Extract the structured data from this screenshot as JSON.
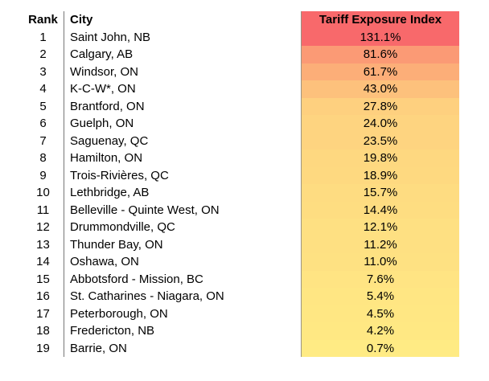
{
  "table": {
    "headers": {
      "rank": "Rank",
      "city": "City",
      "value": "Tariff Exposure Index"
    },
    "header_value_bg": "#F8696B",
    "divider_color": "#777777",
    "text_color": "#000000"
  },
  "chart_data": {
    "type": "table",
    "columns": [
      "Rank",
      "City",
      "Tariff Exposure Index"
    ],
    "value_column_unit": "%",
    "color_scale": {
      "min_color": "#FFEB84",
      "max_color": "#F8696B",
      "min_value": 0.7,
      "max_value": 131.1
    },
    "rows": [
      {
        "rank": "1",
        "city": "Saint John, NB",
        "value": 131.1,
        "display": "131.1%",
        "color": "#F8696B"
      },
      {
        "rank": "2",
        "city": "Calgary, AB",
        "value": 81.6,
        "display": "81.6%",
        "color": "#FB9A75"
      },
      {
        "rank": "3",
        "city": "Windsor, ON",
        "value": 61.7,
        "display": "61.7%",
        "color": "#FCAE78"
      },
      {
        "rank": "4",
        "city": "K-C-W*, ON",
        "value": 43.0,
        "display": "43.0%",
        "color": "#FDC17C"
      },
      {
        "rank": "5",
        "city": "Brantford, ON",
        "value": 27.8,
        "display": "27.8%",
        "color": "#FED07F"
      },
      {
        "rank": "6",
        "city": "Guelph, ON",
        "value": 24.0,
        "display": "24.0%",
        "color": "#FED480"
      },
      {
        "rank": "7",
        "city": "Saguenay, QC",
        "value": 23.5,
        "display": "23.5%",
        "color": "#FED480"
      },
      {
        "rank": "8",
        "city": "Hamilton, ON",
        "value": 19.8,
        "display": "19.8%",
        "color": "#FED880"
      },
      {
        "rank": "9",
        "city": "Trois-Rivières, QC",
        "value": 18.9,
        "display": "18.9%",
        "color": "#FED980"
      },
      {
        "rank": "10",
        "city": "Lethbridge, AB",
        "value": 15.7,
        "display": "15.7%",
        "color": "#FEDC81"
      },
      {
        "rank": "11",
        "city": "Belleville - Quinte West, ON",
        "value": 14.4,
        "display": "14.4%",
        "color": "#FEDD81"
      },
      {
        "rank": "12",
        "city": "Drummondville, QC",
        "value": 12.1,
        "display": "12.1%",
        "color": "#FEE082"
      },
      {
        "rank": "13",
        "city": "Thunder Bay, ON",
        "value": 11.2,
        "display": "11.2%",
        "color": "#FEE082"
      },
      {
        "rank": "14",
        "city": "Oshawa, ON",
        "value": 11.0,
        "display": "11.0%",
        "color": "#FEE182"
      },
      {
        "rank": "15",
        "city": "Abbotsford - Mission, BC",
        "value": 7.6,
        "display": "7.6%",
        "color": "#FFE483"
      },
      {
        "rank": "16",
        "city": "St. Catharines - Niagara, ON",
        "value": 5.4,
        "display": "5.4%",
        "color": "#FFE683"
      },
      {
        "rank": "17",
        "city": "Peterborough, ON",
        "value": 4.5,
        "display": "4.5%",
        "color": "#FFE783"
      },
      {
        "rank": "18",
        "city": "Fredericton, NB",
        "value": 4.2,
        "display": "4.2%",
        "color": "#FFE883"
      },
      {
        "rank": "19",
        "city": "Barrie, ON",
        "value": 0.7,
        "display": "0.7%",
        "color": "#FFEB84"
      }
    ]
  }
}
